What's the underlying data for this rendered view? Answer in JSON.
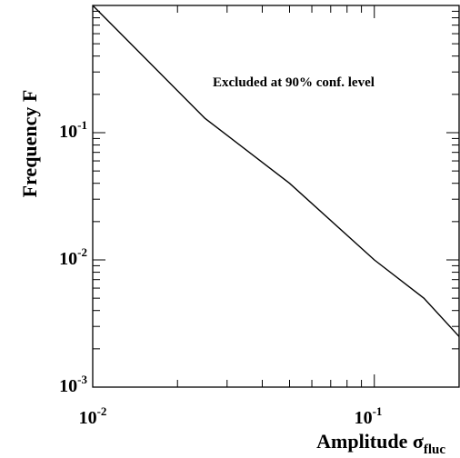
{
  "chart_data": {
    "type": "line",
    "title": "",
    "xlabel": {
      "main": "Amplitude σ",
      "subscript": "fluc"
    },
    "ylabel": "Frequency F",
    "xscale": "log",
    "yscale": "log",
    "xlim": [
      0.01,
      0.2
    ],
    "ylim": [
      0.001,
      1
    ],
    "grid": false,
    "legend": "none",
    "annotation": "Excluded at 90% conf. level",
    "xticks": [
      {
        "value": 0.01,
        "base": "10",
        "exp": "-2"
      },
      {
        "value": 0.1,
        "base": "10",
        "exp": "-1"
      }
    ],
    "yticks": [
      {
        "value": 0.001,
        "base": "10",
        "exp": "-3"
      },
      {
        "value": 0.01,
        "base": "10",
        "exp": "-2"
      },
      {
        "value": 0.1,
        "base": "10",
        "exp": "-1"
      }
    ],
    "series": [
      {
        "x": [
          0.01,
          0.025,
          0.05,
          0.1,
          0.15,
          0.2
        ],
        "y": [
          1.0,
          0.13,
          0.04,
          0.01,
          0.005,
          0.0025
        ],
        "color": "#000000"
      }
    ]
  }
}
